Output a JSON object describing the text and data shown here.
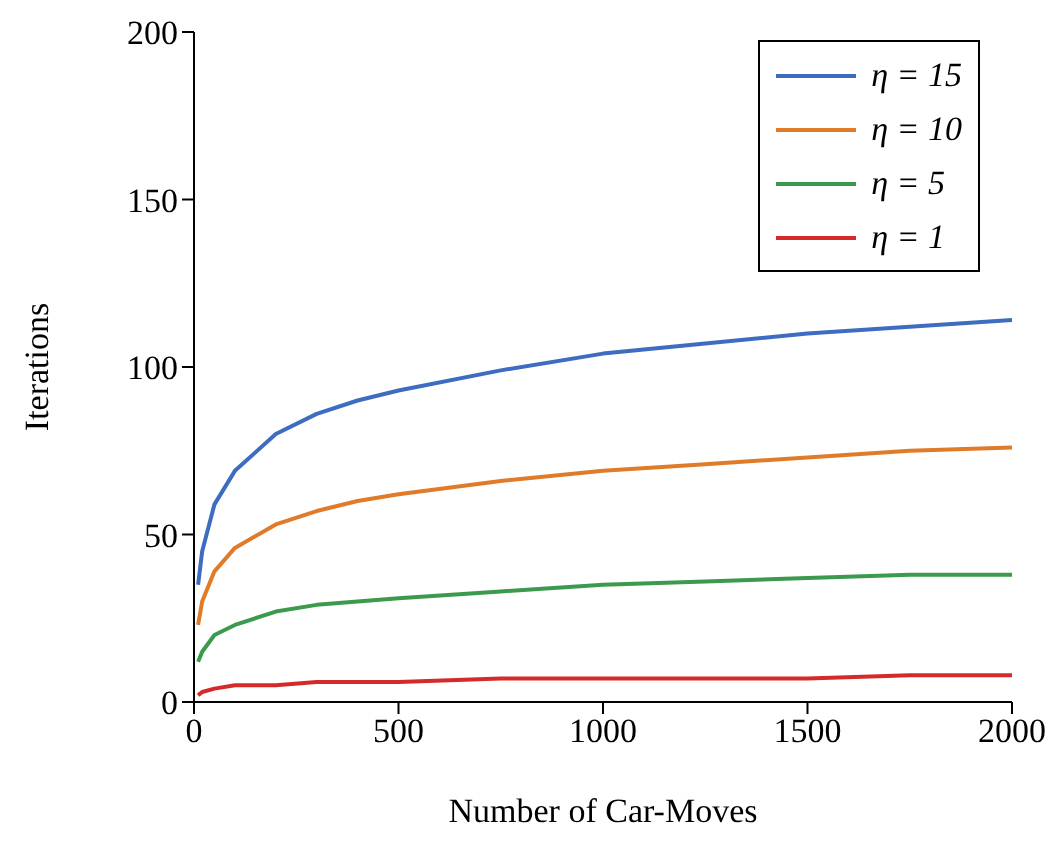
{
  "chart_data": {
    "type": "line",
    "xlabel": "Number of Car-Moves",
    "ylabel": "Iterations",
    "x": [
      10,
      20,
      50,
      100,
      200,
      300,
      400,
      500,
      750,
      1000,
      1250,
      1500,
      1750,
      2000
    ],
    "series": [
      {
        "name": "η = 15",
        "color": "#3d6cc0",
        "values": [
          35,
          45,
          59,
          69,
          80,
          86,
          90,
          93,
          99,
          104,
          107,
          110,
          112,
          114
        ]
      },
      {
        "name": "η = 10",
        "color": "#e07b2a",
        "values": [
          23,
          30,
          39,
          46,
          53,
          57,
          60,
          62,
          66,
          69,
          71,
          73,
          75,
          76
        ]
      },
      {
        "name": "η = 5",
        "color": "#3c9a4e",
        "values": [
          12,
          15,
          20,
          23,
          27,
          29,
          30,
          31,
          33,
          35,
          36,
          37,
          38,
          38
        ]
      },
      {
        "name": "η = 1",
        "color": "#d42a2a",
        "values": [
          2,
          3,
          4,
          5,
          5,
          6,
          6,
          6,
          7,
          7,
          7,
          7,
          8,
          8
        ]
      }
    ],
    "xlim": [
      0,
      2000
    ],
    "xticks": [
      0,
      500,
      1000,
      1500,
      2000
    ],
    "ylim": [
      0,
      200
    ],
    "yticks": [
      0,
      50,
      100,
      150,
      200
    ],
    "grid": false,
    "legend": "top right",
    "marker": "none",
    "line_style": "solid"
  }
}
